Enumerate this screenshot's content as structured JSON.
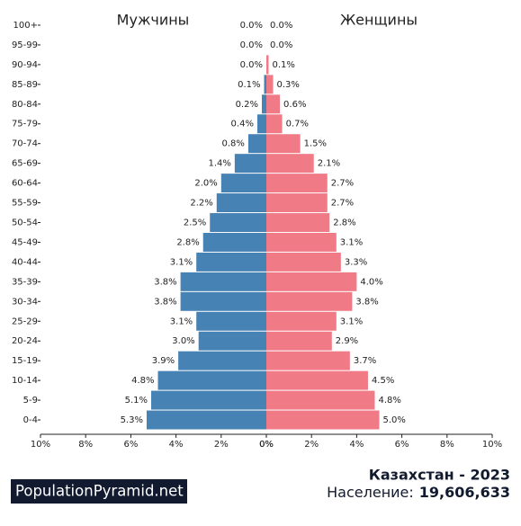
{
  "chart_data": {
    "type": "pyramid",
    "categories": [
      "100+",
      "95-99",
      "90-94",
      "85-89",
      "80-84",
      "75-79",
      "70-74",
      "65-69",
      "60-64",
      "55-59",
      "50-54",
      "45-49",
      "40-44",
      "35-39",
      "30-34",
      "25-29",
      "20-24",
      "15-19",
      "10-14",
      "5-9",
      "0-4"
    ],
    "series": [
      {
        "name": "Мужчины",
        "color": "#4682b4",
        "values": [
          0.0,
          0.0,
          0.0,
          0.1,
          0.2,
          0.4,
          0.8,
          1.4,
          2.0,
          2.2,
          2.5,
          2.8,
          3.1,
          3.8,
          3.8,
          3.1,
          3.0,
          3.9,
          4.8,
          5.1,
          5.3
        ],
        "value_labels": [
          "0.0%",
          "0.0%",
          "0.0%",
          "0.1%",
          "0.2%",
          "0.4%",
          "0.8%",
          "1.4%",
          "2.0%",
          "2.2%",
          "2.5%",
          "2.8%",
          "3.1%",
          "3.8%",
          "3.8%",
          "3.1%",
          "3.0%",
          "3.9%",
          "4.8%",
          "5.1%",
          "5.3%"
        ]
      },
      {
        "name": "Женщины",
        "color": "#f07b87",
        "values": [
          0.0,
          0.0,
          0.1,
          0.3,
          0.6,
          0.7,
          1.5,
          2.1,
          2.7,
          2.7,
          2.8,
          3.1,
          3.3,
          4.0,
          3.8,
          3.1,
          2.9,
          3.7,
          4.5,
          4.8,
          5.0
        ],
        "value_labels": [
          "0.0%",
          "0.0%",
          "0.1%",
          "0.3%",
          "0.6%",
          "0.7%",
          "1.5%",
          "2.1%",
          "2.7%",
          "2.7%",
          "2.8%",
          "3.1%",
          "3.3%",
          "4.0%",
          "3.8%",
          "3.1%",
          "2.9%",
          "3.7%",
          "4.5%",
          "4.8%",
          "5.0%"
        ]
      }
    ],
    "xlim": [
      0,
      10
    ],
    "xticks": [
      {
        "value": 0,
        "label": "0%"
      },
      {
        "value": 2,
        "label": "2%"
      },
      {
        "value": 4,
        "label": "4%"
      },
      {
        "value": 6,
        "label": "6%"
      },
      {
        "value": 8,
        "label": "8%"
      },
      {
        "value": 10,
        "label": "10%"
      }
    ],
    "title": "Казахстан - 2023",
    "population_label": "Население:",
    "population": {
      "value": 19606633,
      "label": "19,606,633"
    },
    "brand": "PopulationPyramid.net"
  }
}
